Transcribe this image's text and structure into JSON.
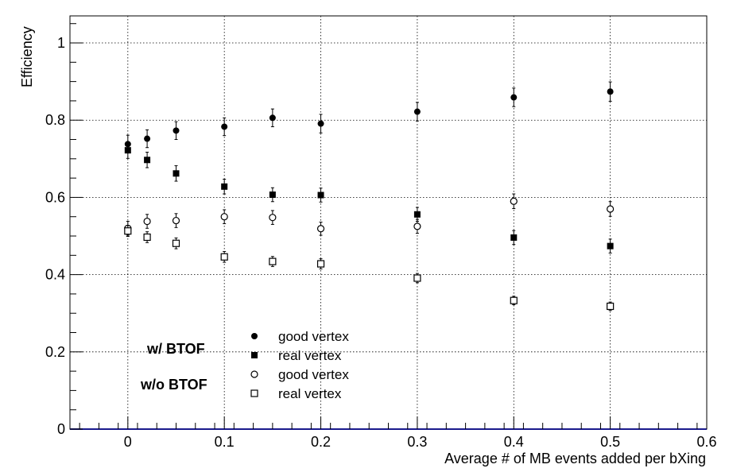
{
  "chart_data": {
    "type": "scatter",
    "title": "",
    "xlabel": "Average # of MB events added per bXing",
    "ylabel": "Efficiency",
    "xlim": [
      -0.06,
      0.6
    ],
    "ylim": [
      0,
      1.07
    ],
    "grid": true,
    "x_ticks": [
      0,
      0.1,
      0.2,
      0.3,
      0.4,
      0.5,
      0.6
    ],
    "x_tick_labels": [
      "0",
      "0.1",
      "0.2",
      "0.3",
      "0.4",
      "0.5",
      "0.6"
    ],
    "y_ticks": [
      0,
      0.2,
      0.4,
      0.6,
      0.8,
      1
    ],
    "y_tick_labels": [
      "0",
      "0.2",
      "0.4",
      "0.6",
      "0.8",
      "1"
    ],
    "legend": {
      "placement": "bottom-left",
      "groups": [
        "w/ BTOF",
        "w/o BTOF"
      ]
    },
    "x": [
      0,
      0.02,
      0.05,
      0.1,
      0.15,
      0.2,
      0.3,
      0.4,
      0.5
    ],
    "series": [
      {
        "name": "good vertex",
        "group": "w/ BTOF",
        "marker": "filled-circle",
        "values": [
          0.738,
          0.752,
          0.773,
          0.783,
          0.806,
          0.791,
          0.822,
          0.859,
          0.874
        ],
        "errors": [
          0.023,
          0.023,
          0.023,
          0.023,
          0.023,
          0.024,
          0.024,
          0.024,
          0.025
        ]
      },
      {
        "name": "real vertex",
        "group": "w/ BTOF",
        "marker": "filled-square",
        "values": [
          0.722,
          0.697,
          0.662,
          0.628,
          0.607,
          0.606,
          0.556,
          0.496,
          0.474
        ],
        "errors": [
          0.021,
          0.02,
          0.02,
          0.019,
          0.018,
          0.018,
          0.018,
          0.018,
          0.018
        ]
      },
      {
        "name": "good vertex",
        "group": "w/o BTOF",
        "marker": "open-circle",
        "values": [
          0.52,
          0.538,
          0.54,
          0.55,
          0.548,
          0.519,
          0.525,
          0.59,
          0.57
        ],
        "errors": [
          0.018,
          0.018,
          0.018,
          0.018,
          0.018,
          0.017,
          0.018,
          0.019,
          0.019
        ]
      },
      {
        "name": "real vertex",
        "group": "w/o BTOF",
        "marker": "open-square",
        "values": [
          0.513,
          0.497,
          0.481,
          0.446,
          0.434,
          0.428,
          0.391,
          0.333,
          0.318
        ],
        "errors": [
          0.014,
          0.014,
          0.014,
          0.014,
          0.013,
          0.013,
          0.012,
          0.011,
          0.011
        ]
      }
    ]
  }
}
